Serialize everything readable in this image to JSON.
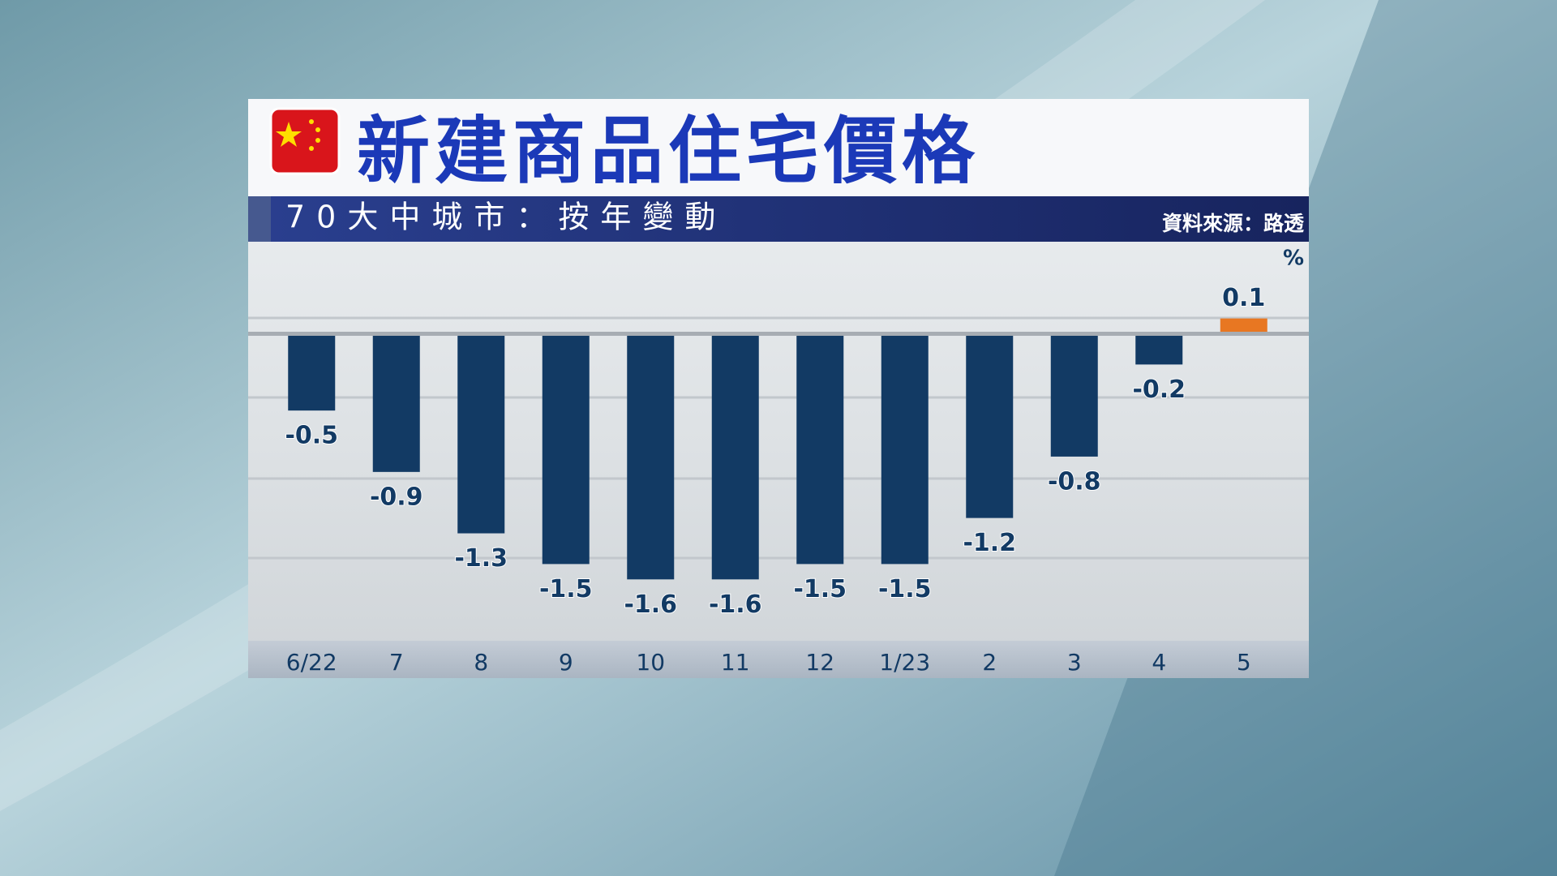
{
  "chart_data": {
    "type": "bar",
    "title": "新建商品住宅價格",
    "subtitle": "70大中城市：按年變動",
    "source": "資料來源：路透",
    "unit": "%",
    "categories": [
      "6/22",
      "7",
      "8",
      "9",
      "10",
      "11",
      "12",
      "1/23",
      "2",
      "3",
      "4",
      "5"
    ],
    "values": [
      -0.5,
      -0.9,
      -1.3,
      -1.5,
      -1.6,
      -1.6,
      -1.5,
      -1.5,
      -1.2,
      -0.8,
      -0.2,
      0.1
    ],
    "colors": [
      "#123a64",
      "#123a64",
      "#123a64",
      "#123a64",
      "#123a64",
      "#123a64",
      "#123a64",
      "#123a64",
      "#123a64",
      "#123a64",
      "#123a64",
      "#e87722"
    ],
    "ylim": [
      -2,
      0.6
    ]
  }
}
